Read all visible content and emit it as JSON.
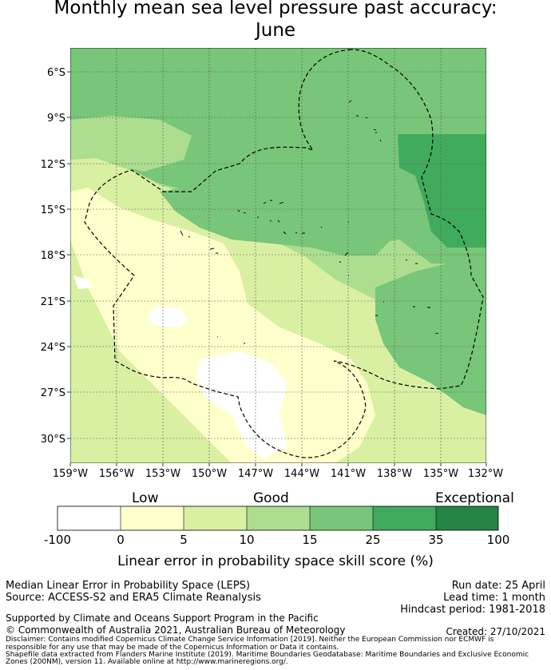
{
  "title_line1": "Monthly mean sea level pressure past accuracy:",
  "title_line2": "June",
  "map": {
    "lat_ticks": [
      "6°S",
      "9°S",
      "12°S",
      "15°S",
      "18°S",
      "21°S",
      "24°S",
      "27°S",
      "30°S"
    ],
    "lon_ticks": [
      "159°W",
      "156°W",
      "153°W",
      "150°W",
      "147°W",
      "144°W",
      "141°W",
      "138°W",
      "135°W",
      "132°W"
    ],
    "colors": {
      "low_0": "#ffffff",
      "0_5": "#ffffcc",
      "5_10": "#d9f0a3",
      "10_15": "#addd8e",
      "15_25": "#78c679",
      "25_35": "#41ab5d",
      "35_100": "#238443"
    }
  },
  "colorbar": {
    "category_labels": [
      "Low",
      "Good",
      "Exceptional"
    ],
    "ticks": [
      "-100",
      "0",
      "5",
      "10",
      "15",
      "25",
      "35",
      "100"
    ],
    "axis_title": "Linear error in probability space skill score (%)"
  },
  "info": {
    "method": "Median Linear Error in Probability Space (LEPS)",
    "source": "Source: ACCESS-S2 and ERA5 Climate Reanalysis",
    "run_date": "Run date: 25 April",
    "lead_time": "Lead time: 1 month",
    "hindcast": "Hindcast period: 1981-2018",
    "support": "Supported by Climate and Oceans Support Program in the Pacific",
    "copyright": "© Commonwealth of Australia 2021, Australian Bureau of Meteorology",
    "created": "Created: 27/10/2021",
    "disclaimer_1": "Disclaimer: Contains modified Copernicus Climate Change Service Information [2019]. Neither the European Commission nor ECMWF is",
    "disclaimer_2": "responsible for any use that may be made of the Copernicus Information or Data it contains.",
    "disclaimer_3": "Shapefile data extracted from Flanders Marine Institute (2019). Maritime Boundaries Geodatabase: Maritime Boundaries and Exclusive Economic",
    "disclaimer_4": "Zones (200NM), version 11. Available online at http://www.marineregions.org/."
  }
}
